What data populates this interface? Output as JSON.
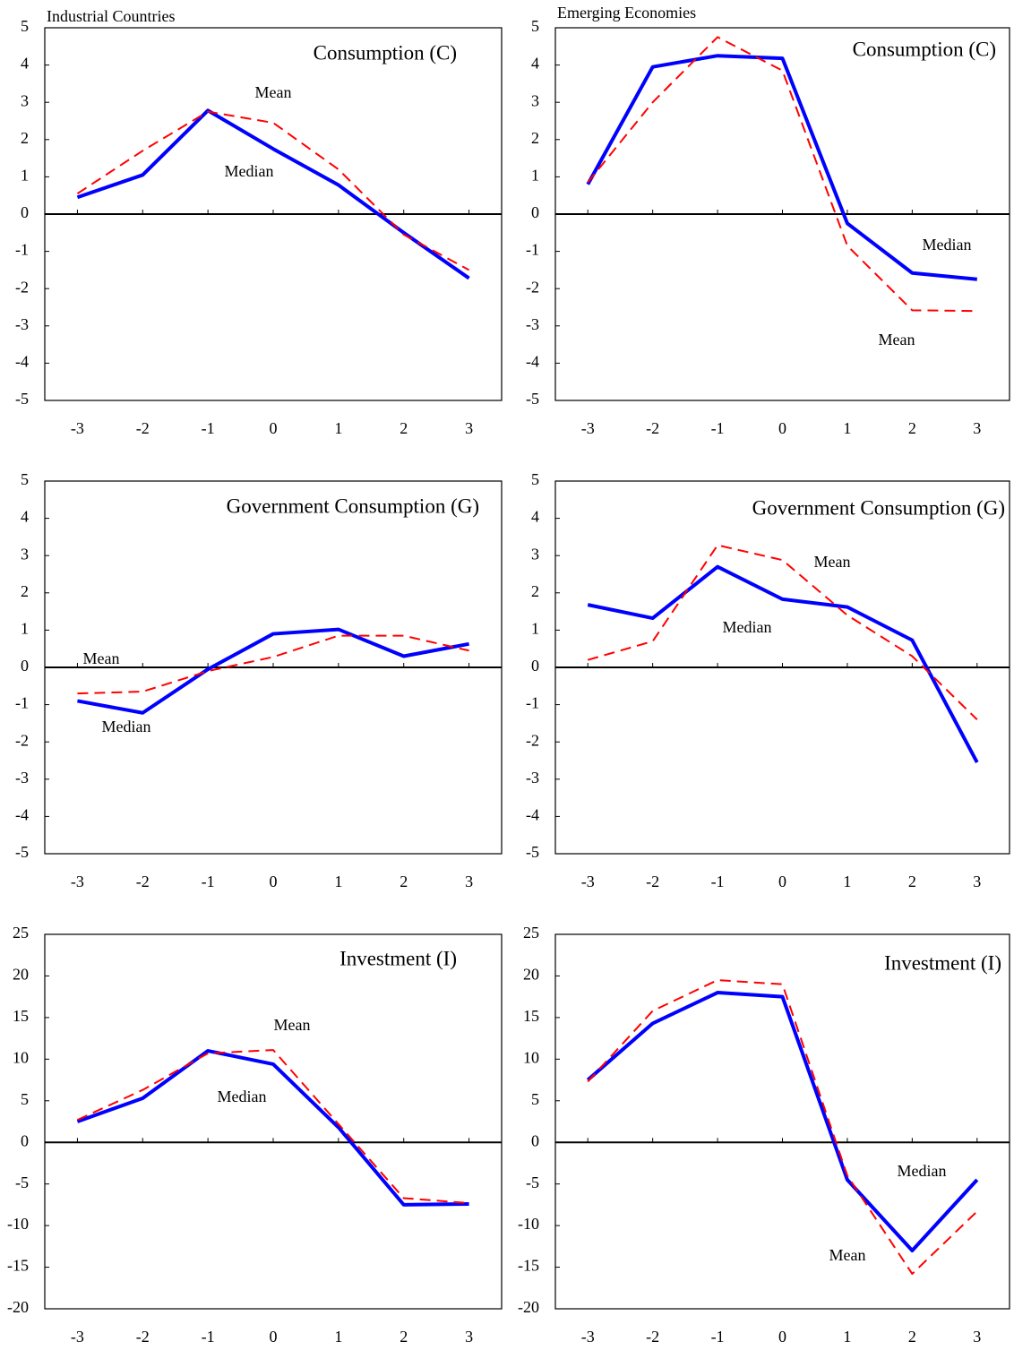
{
  "chart_data": [
    {
      "type": "line",
      "subtitle": "Industrial Countries",
      "title": "Consumption (C)",
      "x": [
        -3,
        -2,
        -1,
        0,
        1,
        2,
        3
      ],
      "xlim": [
        -3.5,
        3.5
      ],
      "xticks": [
        -3,
        -2,
        -1,
        0,
        1,
        2,
        3
      ],
      "ylim": [
        -5,
        5
      ],
      "yticks": [
        -5,
        -4,
        -3,
        -2,
        -1,
        0,
        1,
        2,
        3,
        4,
        5
      ],
      "series": [
        {
          "name": "Median",
          "color": "#0000ff",
          "values": [
            0.45,
            1.05,
            2.78,
            1.75,
            0.78,
            -0.5,
            -1.72
          ]
        },
        {
          "name": "Mean",
          "color": "#ff0000",
          "values": [
            0.55,
            1.7,
            2.75,
            2.45,
            1.2,
            -0.55,
            -1.5
          ]
        }
      ]
    },
    {
      "type": "line",
      "subtitle": "Emerging Economies",
      "title": "Consumption (C)",
      "x": [
        -3,
        -2,
        -1,
        0,
        1,
        2,
        3
      ],
      "xlim": [
        -3.5,
        3.5
      ],
      "xticks": [
        -3,
        -2,
        -1,
        0,
        1,
        2,
        3
      ],
      "ylim": [
        -5,
        5
      ],
      "yticks": [
        -5,
        -4,
        -3,
        -2,
        -1,
        0,
        1,
        2,
        3,
        4,
        5
      ],
      "series": [
        {
          "name": "Median",
          "color": "#0000ff",
          "values": [
            0.8,
            3.95,
            4.25,
            4.18,
            -0.25,
            -1.58,
            -1.75
          ]
        },
        {
          "name": "Mean",
          "color": "#ff0000",
          "values": [
            0.85,
            3.0,
            4.75,
            3.85,
            -0.85,
            -2.58,
            -2.6
          ]
        }
      ]
    },
    {
      "type": "line",
      "title": "Government Consumption (G)",
      "x": [
        -3,
        -2,
        -1,
        0,
        1,
        2,
        3
      ],
      "xlim": [
        -3.5,
        3.5
      ],
      "xticks": [
        -3,
        -2,
        -1,
        0,
        1,
        2,
        3
      ],
      "ylim": [
        -5,
        5
      ],
      "yticks": [
        -5,
        -4,
        -3,
        -2,
        -1,
        0,
        1,
        2,
        3,
        4,
        5
      ],
      "series": [
        {
          "name": "Median",
          "color": "#0000ff",
          "values": [
            -0.9,
            -1.22,
            -0.05,
            0.9,
            1.02,
            0.3,
            0.63
          ]
        },
        {
          "name": "Mean",
          "color": "#ff0000",
          "values": [
            -0.7,
            -0.65,
            -0.1,
            0.28,
            0.85,
            0.85,
            0.45
          ]
        }
      ]
    },
    {
      "type": "line",
      "title": "Government Consumption (G)",
      "x": [
        -3,
        -2,
        -1,
        0,
        1,
        2,
        3
      ],
      "xlim": [
        -3.5,
        3.5
      ],
      "xticks": [
        -3,
        -2,
        -1,
        0,
        1,
        2,
        3
      ],
      "ylim": [
        -5,
        5
      ],
      "yticks": [
        -5,
        -4,
        -3,
        -2,
        -1,
        0,
        1,
        2,
        3,
        4,
        5
      ],
      "series": [
        {
          "name": "Median",
          "color": "#0000ff",
          "values": [
            1.68,
            1.32,
            2.7,
            1.83,
            1.62,
            0.73,
            -2.55
          ]
        },
        {
          "name": "Mean",
          "color": "#ff0000",
          "values": [
            0.2,
            0.7,
            3.28,
            2.88,
            1.4,
            0.3,
            -1.4
          ]
        }
      ]
    },
    {
      "type": "line",
      "title": "Investment (I)",
      "x": [
        -3,
        -2,
        -1,
        0,
        1,
        2,
        3
      ],
      "xlim": [
        -3.5,
        3.5
      ],
      "xticks": [
        -3,
        -2,
        -1,
        0,
        1,
        2,
        3
      ],
      "ylim": [
        -20,
        25
      ],
      "yticks": [
        -20,
        -15,
        -10,
        -5,
        0,
        5,
        10,
        15,
        20,
        25
      ],
      "series": [
        {
          "name": "Median",
          "color": "#0000ff",
          "values": [
            2.5,
            5.3,
            11.0,
            9.4,
            1.8,
            -7.5,
            -7.4
          ]
        },
        {
          "name": "Mean",
          "color": "#ff0000",
          "values": [
            2.7,
            6.3,
            10.7,
            11.1,
            2.2,
            -6.7,
            -7.3
          ]
        }
      ]
    },
    {
      "type": "line",
      "title": "Investment (I)",
      "x": [
        -3,
        -2,
        -1,
        0,
        1,
        2,
        3
      ],
      "xlim": [
        -3.5,
        3.5
      ],
      "xticks": [
        -3,
        -2,
        -1,
        0,
        1,
        2,
        3
      ],
      "ylim": [
        -20,
        25
      ],
      "yticks": [
        -20,
        -15,
        -10,
        -5,
        0,
        5,
        10,
        15,
        20,
        25
      ],
      "series": [
        {
          "name": "Median",
          "color": "#0000ff",
          "values": [
            7.5,
            14.3,
            18.0,
            17.5,
            -4.5,
            -13.0,
            -4.5
          ]
        },
        {
          "name": "Mean",
          "color": "#ff0000",
          "values": [
            7.3,
            15.8,
            19.5,
            19.0,
            -4.0,
            -15.8,
            -8.3
          ]
        }
      ]
    }
  ]
}
